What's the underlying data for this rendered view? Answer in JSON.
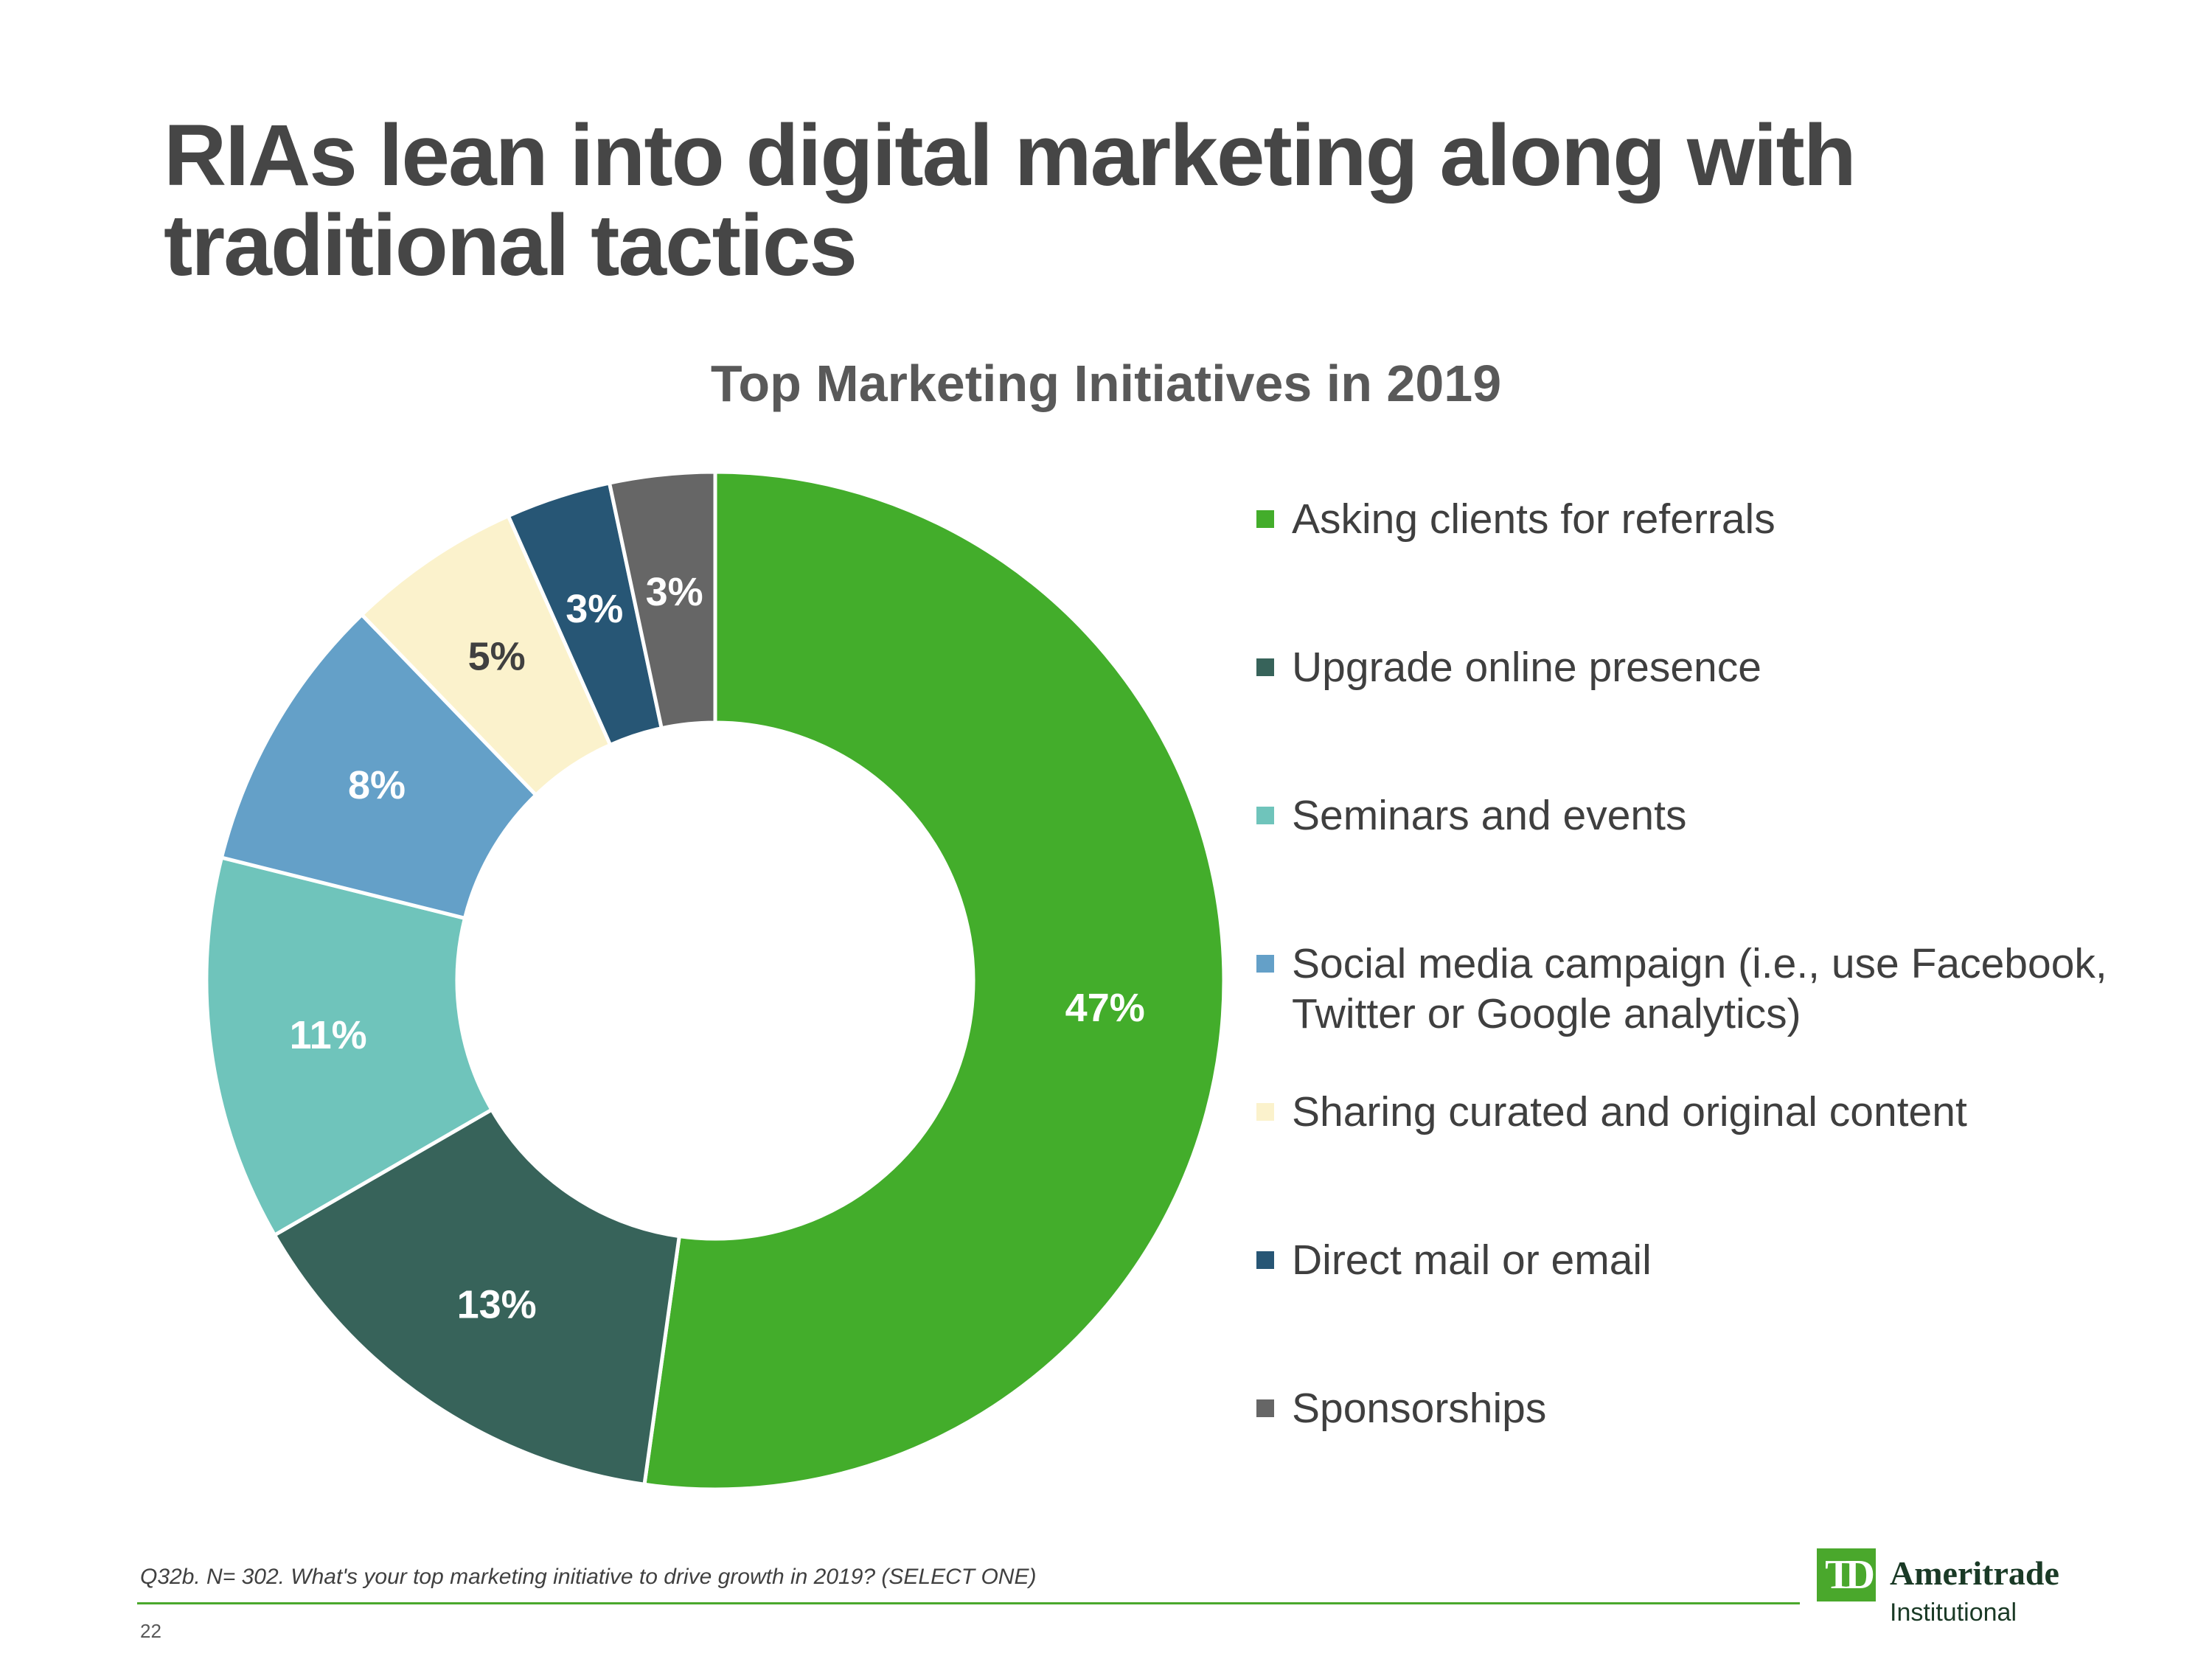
{
  "page": {
    "title": "RIAs lean into digital marketing along with traditional tactics",
    "footnote": "Q32b.  N= 302. What's your top marketing initiative to drive growth in 2019?  (SELECT ONE)",
    "page_number": "22",
    "logo": {
      "mark": "TD",
      "name": "Ameritrade",
      "subtitle": "Institutional"
    }
  },
  "chart_data": {
    "type": "pie",
    "title": "Top Marketing Initiatives in 2019",
    "donut": true,
    "legend_position": "right",
    "value_format": "percent",
    "slices": [
      {
        "label": "Asking clients for referrals",
        "value": 47,
        "display": "47%",
        "color": "#43ad2b",
        "label_color": "#ffffff"
      },
      {
        "label": "Upgrade online presence",
        "value": 13,
        "display": "13%",
        "color": "#37635a",
        "label_color": "#ffffff"
      },
      {
        "label": "Seminars and events",
        "value": 11,
        "display": "11%",
        "color": "#6fc4bb",
        "label_color": "#ffffff"
      },
      {
        "label": "Social media campaign (i.e., use Facebook, Twitter or Google analytics)",
        "value": 8,
        "display": "8%",
        "color": "#64a0c8",
        "label_color": "#ffffff"
      },
      {
        "label": "Sharing curated and original content",
        "value": 5,
        "display": "5%",
        "color": "#fbf2cc",
        "label_color": "#404040"
      },
      {
        "label": "Direct mail or email",
        "value": 3,
        "display": "3%",
        "color": "#275675",
        "label_color": "#ffffff"
      },
      {
        "label": "Sponsorships",
        "value": 3,
        "display": "3%",
        "color": "#666666",
        "label_color": "#ffffff"
      }
    ]
  }
}
